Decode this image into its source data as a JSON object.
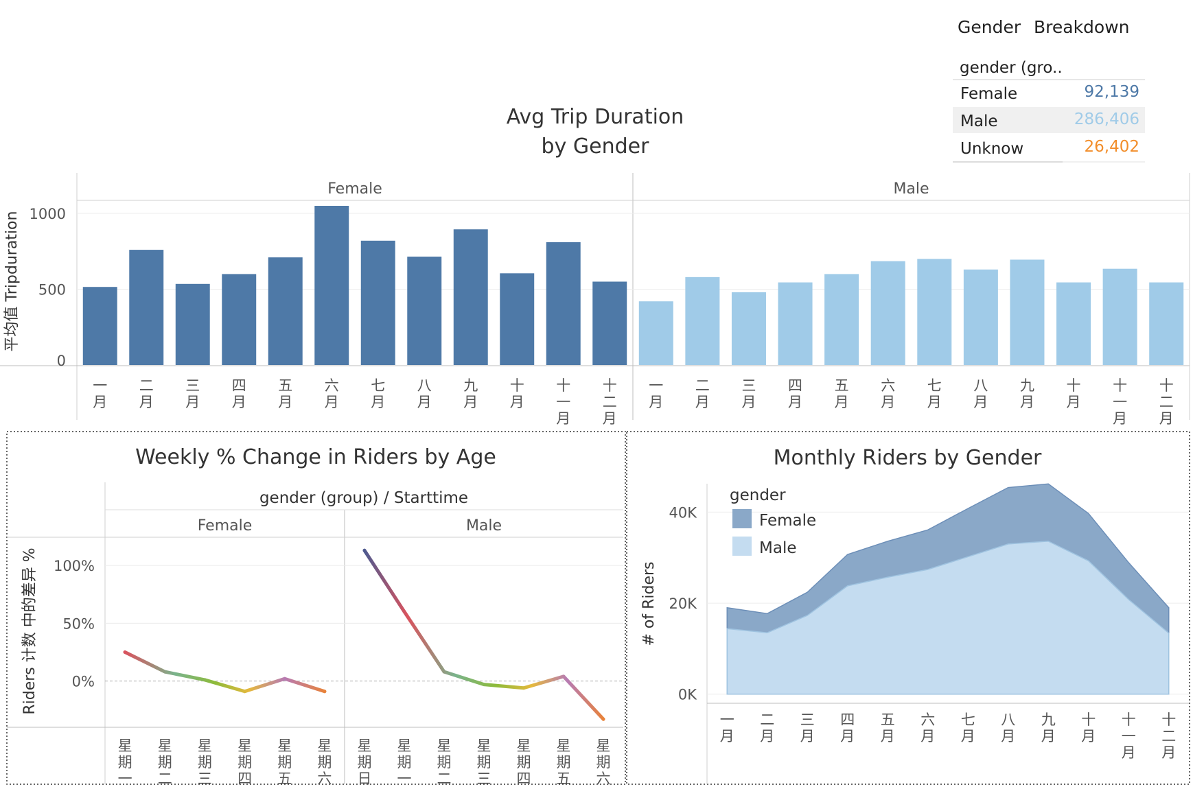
{
  "months": [
    "一月",
    "二月",
    "三月",
    "四月",
    "五月",
    "六月",
    "七月",
    "八月",
    "九月",
    "十月",
    "十一月",
    "十二月"
  ],
  "breakdown": {
    "title_word1": "Gender",
    "title_word2": "Breakdown",
    "column_header": "gender (gro..",
    "rows": [
      {
        "label": "Female",
        "value": "92,139",
        "color": "#4e79a7"
      },
      {
        "label": "Male",
        "value": "286,406",
        "color": "#a0cbe8"
      },
      {
        "label": "Unknow",
        "value": "26,402",
        "color": "#f28e2b"
      }
    ]
  },
  "chart_data": [
    {
      "type": "bar",
      "title_line1": "Avg Trip Duration",
      "title_line2": "by Gender",
      "ylabel": "平均值 Tripduration",
      "ylim": [
        0,
        1050
      ],
      "yticks": [
        "0",
        "500",
        "1000"
      ],
      "panels": [
        "Female",
        "Male"
      ],
      "categories": [
        "一月",
        "二月",
        "三月",
        "四月",
        "五月",
        "六月",
        "七月",
        "八月",
        "九月",
        "十月",
        "十一月",
        "十二月"
      ],
      "series": [
        {
          "name": "Female",
          "color": "#4e79a7",
          "values": [
            515,
            760,
            535,
            600,
            710,
            1050,
            820,
            715,
            895,
            605,
            810,
            550
          ]
        },
        {
          "name": "Male",
          "color": "#a0cbe8",
          "values": [
            420,
            580,
            480,
            545,
            600,
            685,
            700,
            630,
            695,
            545,
            635,
            545
          ]
        }
      ]
    },
    {
      "type": "line",
      "title": "Weekly % Change in Riders by Age",
      "header": "gender (group)  /  Starttime",
      "ylabel": "Riders 计数 中的差异 %",
      "ylim": [
        -40,
        125
      ],
      "yticks": [
        "0%",
        "50%",
        "100%"
      ],
      "panels": [
        {
          "name": "Female",
          "categories": [
            "星期一",
            "星期二",
            "星期三",
            "星期四",
            "星期五",
            "星期六"
          ],
          "values": [
            25,
            8,
            1,
            -9,
            2,
            -9
          ]
        },
        {
          "name": "Male",
          "categories": [
            "星期日",
            "星期一",
            "星期二",
            "星期三",
            "星期四",
            "星期五",
            "星期六"
          ],
          "values": [
            113,
            60,
            8,
            -3,
            -6,
            4,
            -33
          ]
        }
      ]
    },
    {
      "type": "area",
      "title": "Monthly Riders by Gender",
      "ylabel": "# of Riders",
      "ylim": [
        -2000,
        47000
      ],
      "yticks": [
        "0K",
        "20K",
        "40K"
      ],
      "categories": [
        "一月",
        "二月",
        "三月",
        "四月",
        "五月",
        "六月",
        "七月",
        "八月",
        "九月",
        "十月",
        "十一月",
        "十二月"
      ],
      "legend_title": "gender",
      "series": [
        {
          "name": "Female",
          "color": "#8aa8c8",
          "values": [
            19000,
            17700,
            22400,
            30700,
            33600,
            36100,
            40800,
            45400,
            46200,
            39700,
            28900,
            19000
          ]
        },
        {
          "name": "Male",
          "color": "#c4dcf0",
          "values": [
            14400,
            13500,
            17300,
            23800,
            25700,
            27400,
            30200,
            33000,
            33600,
            29300,
            20800,
            13400
          ]
        }
      ]
    }
  ]
}
